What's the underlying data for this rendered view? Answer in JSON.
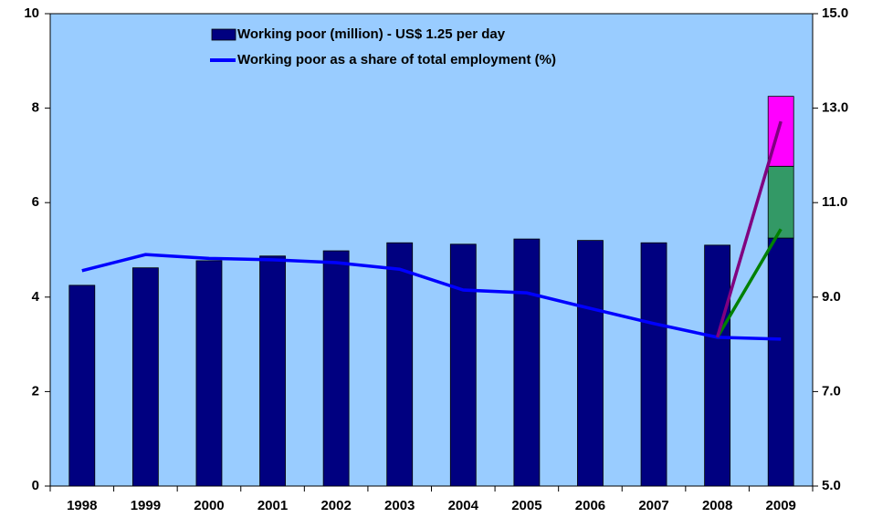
{
  "chart_data": {
    "type": "bar",
    "categories": [
      "1998",
      "1999",
      "2000",
      "2001",
      "2002",
      "2003",
      "2004",
      "2005",
      "2006",
      "2007",
      "2008",
      "2009"
    ],
    "series": [
      {
        "name": "Working poor (million) - US$ 1.25 per day",
        "type": "bar",
        "color": "#000080",
        "values": [
          4.25,
          4.62,
          4.77,
          4.87,
          4.98,
          5.15,
          5.12,
          5.23,
          5.2,
          5.15,
          5.1,
          5.25
        ]
      },
      {
        "type": "bar",
        "color": "#339966",
        "values": [
          null,
          null,
          null,
          null,
          null,
          null,
          null,
          null,
          null,
          null,
          null,
          1.52
        ]
      },
      {
        "type": "bar",
        "color": "#ff00ff",
        "values": [
          null,
          null,
          null,
          null,
          null,
          null,
          null,
          null,
          null,
          null,
          null,
          1.48
        ]
      },
      {
        "name": "Working poor as a share of total employment (%)",
        "type": "line",
        "axis": "y2",
        "color": "#0000ff",
        "values": [
          9.56,
          9.9,
          9.82,
          9.79,
          9.73,
          9.59,
          9.15,
          9.09,
          8.76,
          8.44,
          8.15,
          8.11
        ]
      },
      {
        "type": "line",
        "axis": "y2",
        "color": "#008000",
        "values": [
          null,
          null,
          null,
          null,
          null,
          null,
          null,
          null,
          null,
          null,
          8.15,
          10.44
        ]
      },
      {
        "type": "line",
        "axis": "y2",
        "color": "#800080",
        "values": [
          null,
          null,
          null,
          null,
          null,
          null,
          null,
          null,
          null,
          null,
          8.15,
          12.72
        ]
      }
    ],
    "stacked": true,
    "ylim": [
      0,
      10
    ],
    "yticks": [
      0,
      2,
      4,
      6,
      8,
      10
    ],
    "y2lim": [
      5,
      15
    ],
    "y2ticks": [
      {
        "value": 5,
        "label": "5.0"
      },
      {
        "value": 7,
        "label": "7.0"
      },
      {
        "value": 9,
        "label": "9.0"
      },
      {
        "value": 11,
        "label": "11.0"
      },
      {
        "value": 13,
        "label": "13.0"
      },
      {
        "value": 15,
        "label": "15.0"
      }
    ],
    "plot_background": "#99ccff"
  }
}
